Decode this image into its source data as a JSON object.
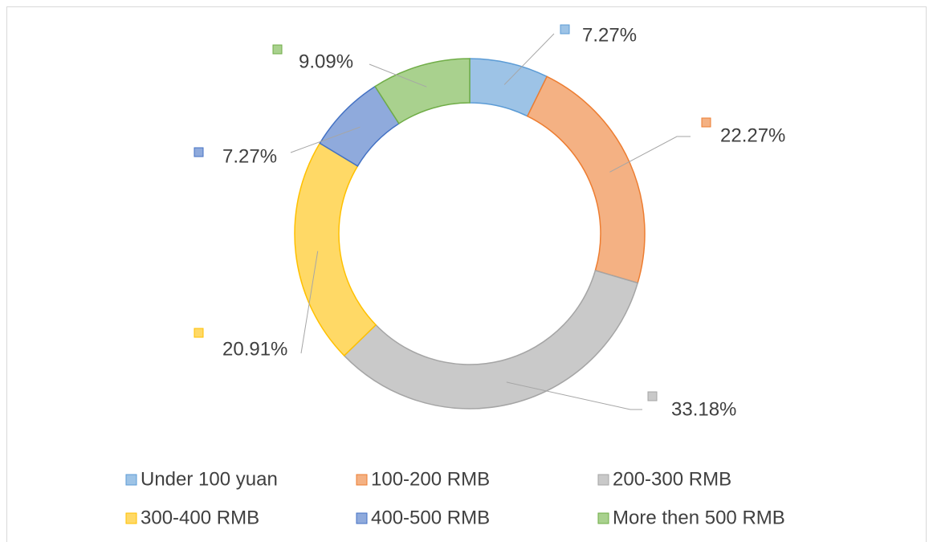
{
  "chart_data": {
    "type": "donut",
    "categories": [
      "Under 100 yuan",
      "100-200 RMB",
      "200-300 RMB",
      "300-400 RMB",
      "400-500 RMB",
      "More then 500 RMB"
    ],
    "values": [
      7.27,
      22.27,
      33.18,
      20.91,
      7.27,
      9.09
    ],
    "value_labels": [
      "7.27%",
      "22.27%",
      "33.18%",
      "20.91%",
      "7.27%",
      "9.09%"
    ],
    "colors": [
      "#9dc3e6",
      "#f4b183",
      "#c9c9c9",
      "#ffd966",
      "#8faadc",
      "#a9d18e"
    ],
    "legend": "bottom"
  }
}
